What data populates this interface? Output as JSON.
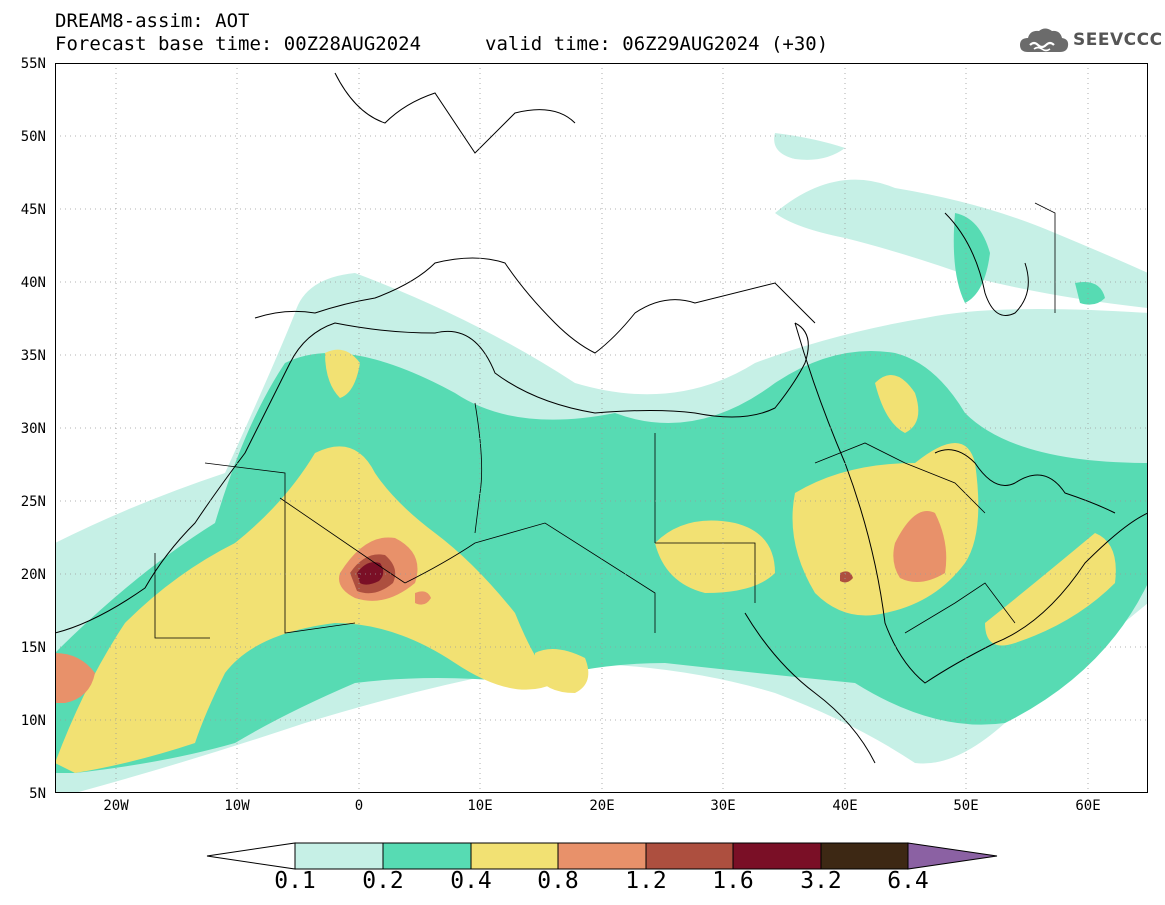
{
  "header": {
    "title": "DREAM8-assim: AOT",
    "base_time": "Forecast base time: 00Z28AUG2024",
    "valid_time": "valid time: 06Z29AUG2024 (+30)"
  },
  "logo": {
    "text": "SEEVCCC",
    "icon": "cloud-icon"
  },
  "map": {
    "projection": "lat-lon",
    "lon_range": [
      -25,
      65
    ],
    "lat_range": [
      5,
      55
    ],
    "grid": "dotted",
    "lat_labels": [
      "55N",
      "50N",
      "45N",
      "40N",
      "35N",
      "30N",
      "25N",
      "20N",
      "15N",
      "10N",
      "5N"
    ],
    "lon_labels": [
      "20W",
      "10W",
      "0",
      "10E",
      "20E",
      "30E",
      "40E",
      "50E",
      "60E"
    ]
  },
  "legend": {
    "levels": [
      "0.1",
      "0.2",
      "0.4",
      "0.8",
      "1.2",
      "1.6",
      "3.2",
      "6.4"
    ],
    "colors": [
      "#ffffff",
      "#c6f0e6",
      "#57dbb3",
      "#f2e173",
      "#e8916a",
      "#ad4f3f",
      "#7a0f26",
      "#3d2814",
      "#8b61a3"
    ]
  }
}
